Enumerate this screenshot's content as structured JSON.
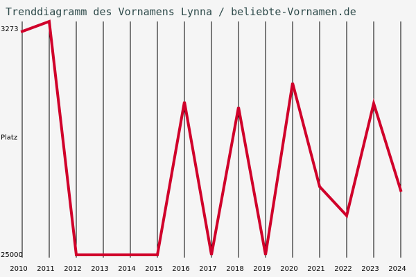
{
  "title": "Trenddiagramm des Vornamens Lynna / beliebte-Vornamen.de",
  "chart_data": {
    "type": "line",
    "title": "Trenddiagramm des Vornamens Lynna / beliebte-Vornamen.de",
    "ylabel": "Platz",
    "y_inverted": true,
    "ylim": [
      3273,
      25000
    ],
    "y_tick_labels": [
      "3273",
      "Platz",
      "25000"
    ],
    "grid": "vertical",
    "categories": [
      "2010",
      "2011",
      "2012",
      "2013",
      "2014",
      "2015",
      "2016",
      "2017",
      "2018",
      "2019",
      "2020",
      "2021",
      "2022",
      "2023",
      "2024"
    ],
    "series": [
      {
        "color": "#d0002a",
        "values": [
          4200,
          3273,
          25000,
          25000,
          25000,
          25000,
          10750,
          25000,
          11250,
          25000,
          9000,
          18650,
          21350,
          10900,
          19000
        ]
      }
    ]
  }
}
